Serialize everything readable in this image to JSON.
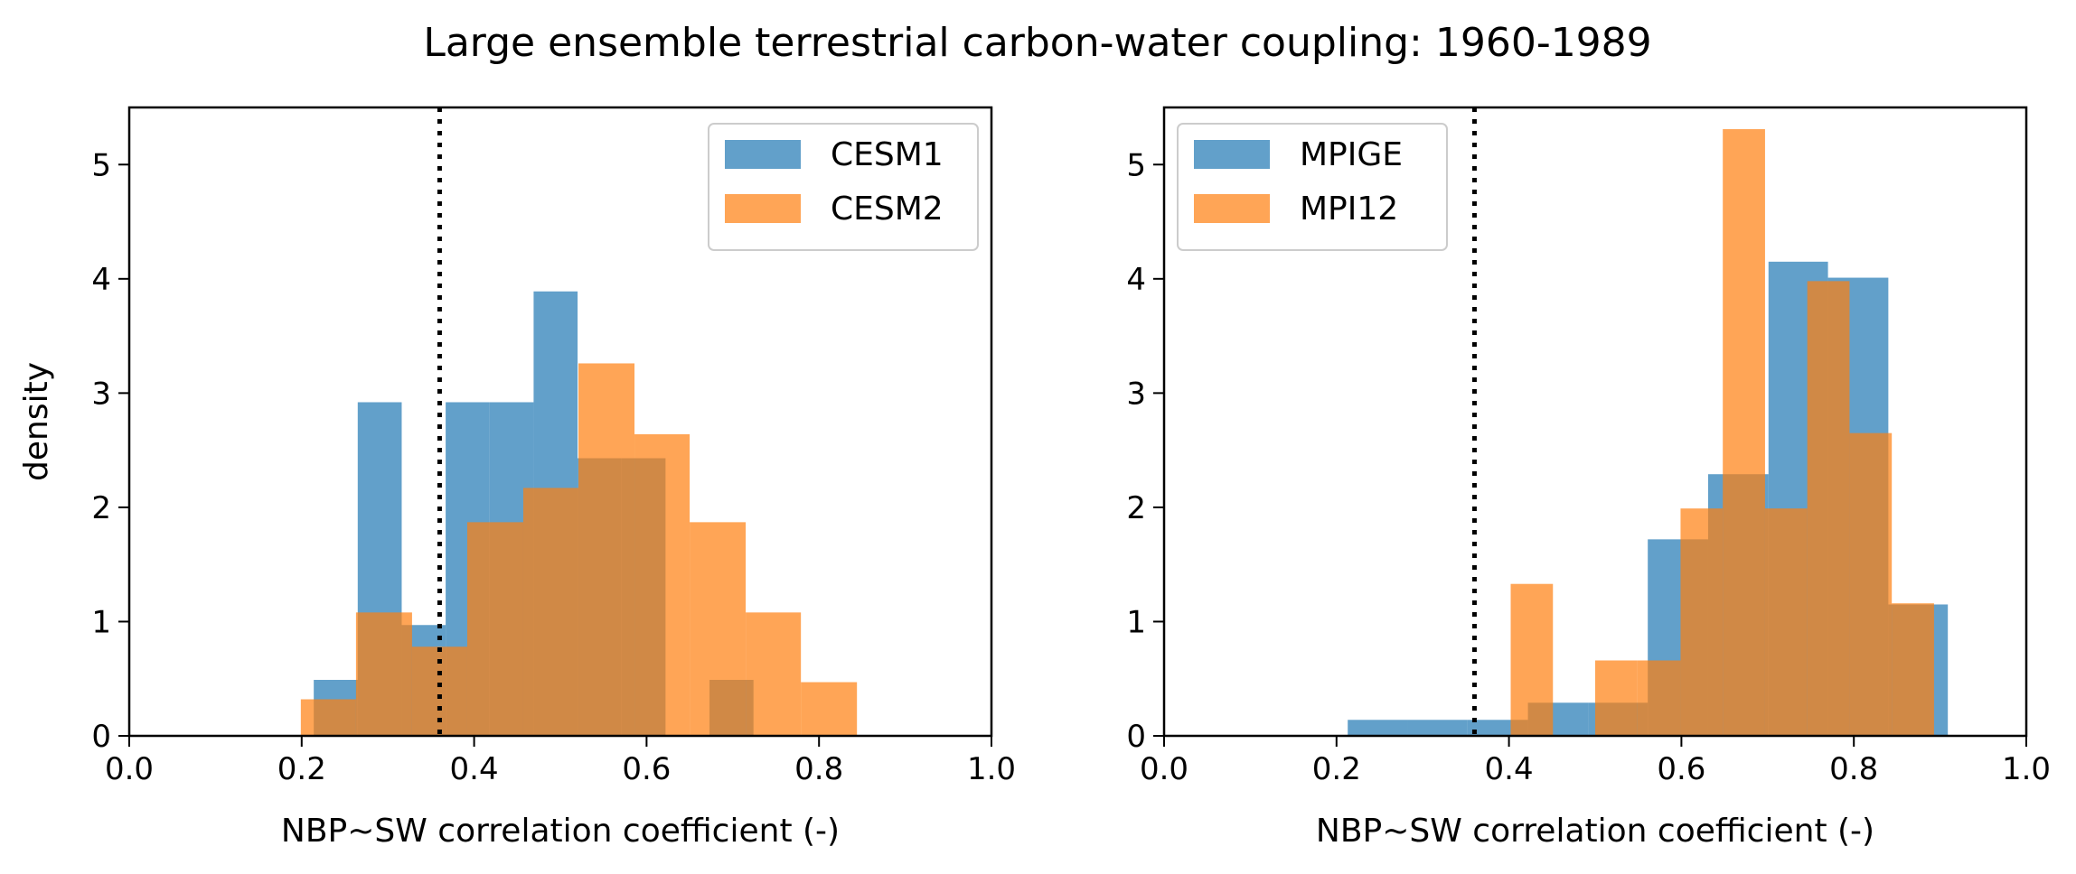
{
  "figure": {
    "title": "Large ensemble terrestrial carbon-water coupling: 1960-1989"
  },
  "colors": {
    "blue": "#1f77b4",
    "orange": "#ff7f0e",
    "bar_alpha": 0.7,
    "reference_line": "#000000"
  },
  "chart_data": [
    {
      "type": "histogram",
      "panel": "left",
      "xlabel": "NBP~SW correlation coefficient (-)",
      "ylabel": "density",
      "xlim": [
        0.0,
        1.0
      ],
      "ylim": [
        0,
        5.5
      ],
      "xticks": [
        "0.0",
        "0.2",
        "0.4",
        "0.6",
        "0.8",
        "1.0"
      ],
      "yticks": [
        "0",
        "1",
        "2",
        "3",
        "4",
        "5"
      ],
      "grid": false,
      "legend_position": "upper right",
      "reference_line_x": 0.36,
      "reference_line_style": "dotted",
      "series": [
        {
          "name": "CESM1",
          "color": "#1f77b4",
          "bins": [
            {
              "x0": 0.214,
              "x1": 0.265,
              "y": 0.49
            },
            {
              "x0": 0.265,
              "x1": 0.316,
              "y": 2.92
            },
            {
              "x0": 0.316,
              "x1": 0.367,
              "y": 0.97
            },
            {
              "x0": 0.367,
              "x1": 0.418,
              "y": 2.92
            },
            {
              "x0": 0.418,
              "x1": 0.469,
              "y": 2.92
            },
            {
              "x0": 0.469,
              "x1": 0.52,
              "y": 3.89
            },
            {
              "x0": 0.52,
              "x1": 0.571,
              "y": 2.43
            },
            {
              "x0": 0.571,
              "x1": 0.622,
              "y": 2.43
            },
            {
              "x0": 0.622,
              "x1": 0.673,
              "y": 0
            },
            {
              "x0": 0.673,
              "x1": 0.724,
              "y": 0.49
            }
          ]
        },
        {
          "name": "CESM2",
          "color": "#ff7f0e",
          "bins": [
            {
              "x0": 0.199,
              "x1": 0.263,
              "y": 0.32
            },
            {
              "x0": 0.263,
              "x1": 0.328,
              "y": 1.08
            },
            {
              "x0": 0.328,
              "x1": 0.392,
              "y": 0.78
            },
            {
              "x0": 0.392,
              "x1": 0.457,
              "y": 1.87
            },
            {
              "x0": 0.457,
              "x1": 0.521,
              "y": 2.17
            },
            {
              "x0": 0.521,
              "x1": 0.586,
              "y": 3.26
            },
            {
              "x0": 0.586,
              "x1": 0.65,
              "y": 2.64
            },
            {
              "x0": 0.65,
              "x1": 0.715,
              "y": 1.87
            },
            {
              "x0": 0.715,
              "x1": 0.779,
              "y": 1.08
            },
            {
              "x0": 0.779,
              "x1": 0.844,
              "y": 0.47
            }
          ]
        }
      ]
    },
    {
      "type": "histogram",
      "panel": "right",
      "xlabel": "NBP~SW correlation coefficient (-)",
      "ylabel": "",
      "xlim": [
        0.0,
        1.0
      ],
      "ylim": [
        0,
        5.5
      ],
      "xticks": [
        "0.0",
        "0.2",
        "0.4",
        "0.6",
        "0.8",
        "1.0"
      ],
      "yticks": [
        "0",
        "1",
        "2",
        "3",
        "4",
        "5"
      ],
      "grid": false,
      "legend_position": "upper left",
      "reference_line_x": 0.36,
      "reference_line_style": "dotted",
      "series": [
        {
          "name": "MPIGE",
          "color": "#1f77b4",
          "bins": [
            {
              "x0": 0.213,
              "x1": 0.283,
              "y": 0.14
            },
            {
              "x0": 0.283,
              "x1": 0.352,
              "y": 0.14
            },
            {
              "x0": 0.352,
              "x1": 0.422,
              "y": 0.14
            },
            {
              "x0": 0.422,
              "x1": 0.492,
              "y": 0.29
            },
            {
              "x0": 0.492,
              "x1": 0.561,
              "y": 0.29
            },
            {
              "x0": 0.561,
              "x1": 0.631,
              "y": 1.72
            },
            {
              "x0": 0.631,
              "x1": 0.701,
              "y": 2.29
            },
            {
              "x0": 0.701,
              "x1": 0.77,
              "y": 4.15
            },
            {
              "x0": 0.77,
              "x1": 0.84,
              "y": 4.01
            },
            {
              "x0": 0.84,
              "x1": 0.909,
              "y": 1.15
            }
          ]
        },
        {
          "name": "MPI12",
          "color": "#ff7f0e",
          "bins": [
            {
              "x0": 0.402,
              "x1": 0.451,
              "y": 1.33
            },
            {
              "x0": 0.451,
              "x1": 0.5,
              "y": 0
            },
            {
              "x0": 0.5,
              "x1": 0.549,
              "y": 0.66
            },
            {
              "x0": 0.549,
              "x1": 0.599,
              "y": 0.66
            },
            {
              "x0": 0.599,
              "x1": 0.648,
              "y": 1.99
            },
            {
              "x0": 0.648,
              "x1": 0.697,
              "y": 5.31
            },
            {
              "x0": 0.697,
              "x1": 0.746,
              "y": 1.99
            },
            {
              "x0": 0.746,
              "x1": 0.795,
              "y": 3.98
            },
            {
              "x0": 0.795,
              "x1": 0.844,
              "y": 2.65
            },
            {
              "x0": 0.844,
              "x1": 0.893,
              "y": 1.16
            }
          ]
        }
      ]
    }
  ]
}
